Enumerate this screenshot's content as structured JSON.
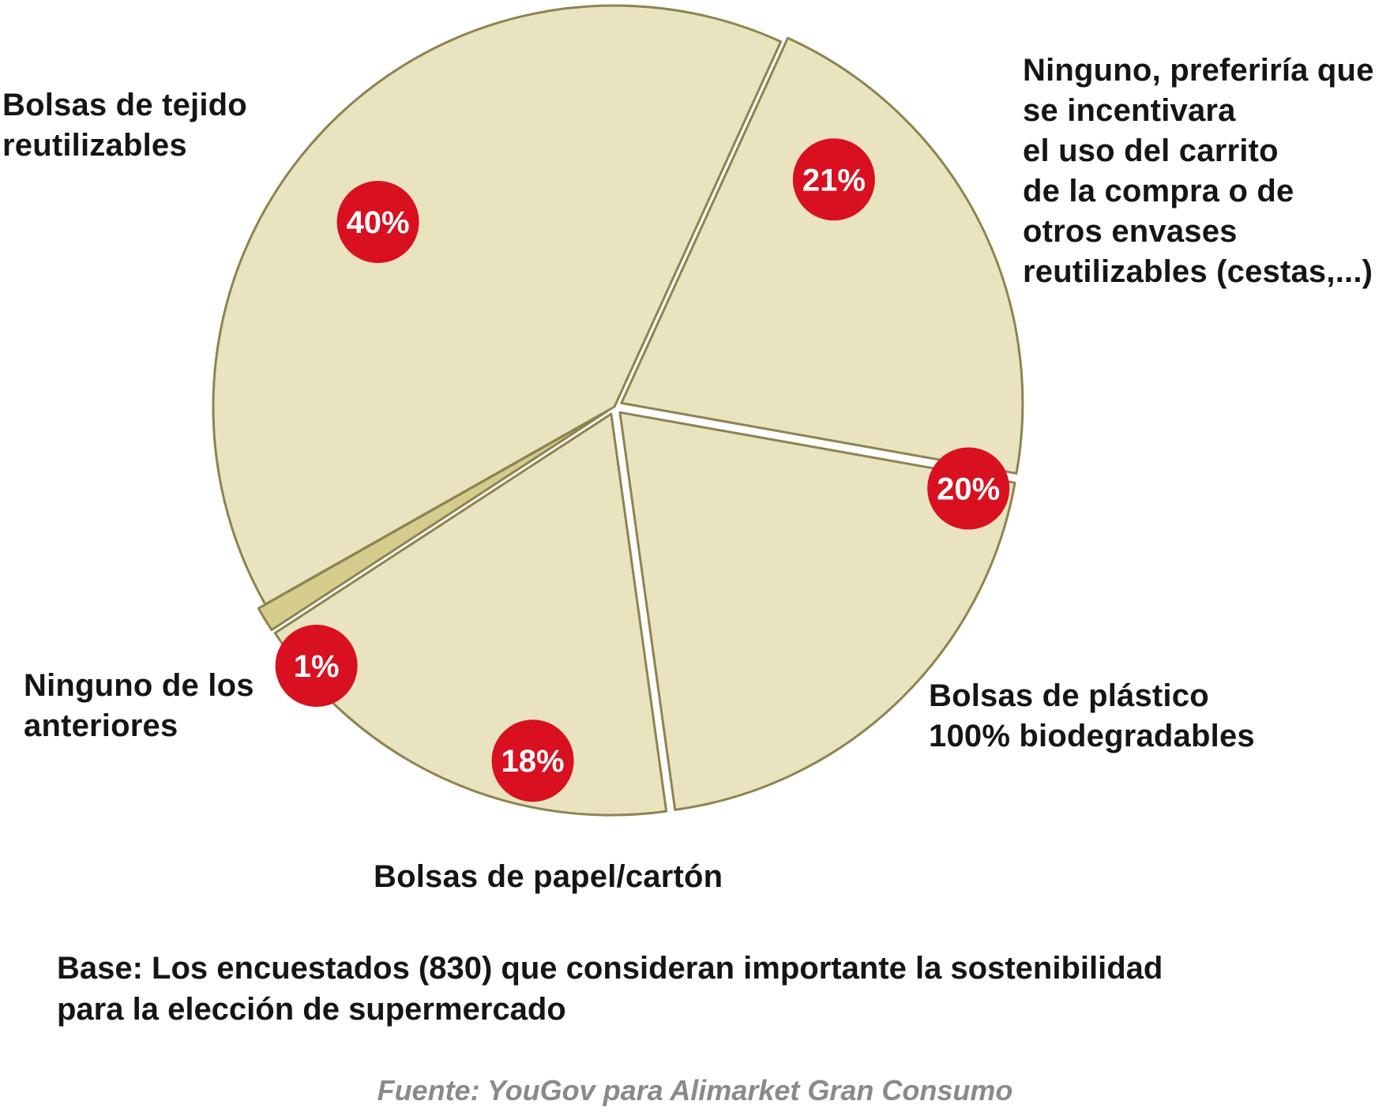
{
  "chart_data": {
    "type": "pie",
    "categories": [
      "Bolsas de tejido reutilizables",
      "Ninguno, preferiría que se incentivara el uso del carrito de la compra o de otros envases reutilizables (cestas,...)",
      "Bolsas de plástico 100% biodegradables",
      "Bolsas de papel/cartón",
      "Ninguno de los anteriores"
    ],
    "values": [
      40,
      21,
      20,
      18,
      1
    ],
    "value_labels": [
      "40%",
      "21%",
      "20%",
      "18%",
      "1%"
    ],
    "slice_labels": [
      "Bolsas de tejido\nreutilizables",
      "Ninguno, preferiría que\nse incentivara\nel uso del carrito\nde la compra o de\notros envases\nreutilizables (cestas,...)",
      "Bolsas de plástico\n100% biodegradables",
      "Bolsas de papel/cartón",
      "Ninguno de los\nanteriores"
    ],
    "colors": {
      "slice_fill": "#e9e3bf",
      "small_slice_fill": "#d6cc8c",
      "slice_stroke": "#8c8450",
      "badge": "#d8101f",
      "badge_text": "#ffffff"
    }
  },
  "footnote": "Base: Los encuestados (830) que consideran importante la sostenibilidad\npara la elección de supermercado",
  "source": "Fuente: YouGov para Alimarket Gran Consumo"
}
